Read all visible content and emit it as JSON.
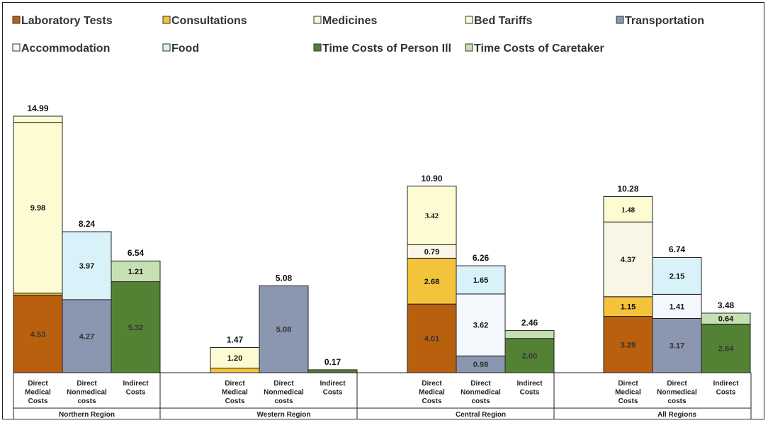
{
  "chart_data": {
    "type": "stacked-bar",
    "title": "",
    "xlabel": "",
    "ylabel": "",
    "ylim": [
      0,
      16
    ],
    "grid": false,
    "legend_position": "top",
    "series": [
      {
        "key": "lab",
        "name": "Laboratory Tests",
        "color": "#b8600d",
        "text_color": "#333333"
      },
      {
        "key": "consult",
        "name": "Consultations",
        "color": "#f3c33c",
        "text_color": "#111111"
      },
      {
        "key": "med",
        "name": "Medicines",
        "color": "#faf6e6",
        "text_color": "#111111"
      },
      {
        "key": "bed",
        "name": "Bed Tariffs",
        "color": "#fdfbd2",
        "text_color": "#111111"
      },
      {
        "key": "transport",
        "name": "Transportation",
        "color": "#8b97b0",
        "text_color": "#333333"
      },
      {
        "key": "accom",
        "name": "Accommodation",
        "color": "#f4f7fc",
        "text_color": "#111111"
      },
      {
        "key": "food",
        "name": "Food",
        "color": "#d9f2fa",
        "text_color": "#111111"
      },
      {
        "key": "tcp",
        "name": "Time Costs of Person Ill",
        "color": "#548235",
        "text_color": "#333333"
      },
      {
        "key": "tcc",
        "name": "Time Costs of Caretaker",
        "color": "#c6e0b4",
        "text_color": "#111111"
      }
    ],
    "groups": [
      {
        "region": "Northern Region",
        "bars": [
          {
            "label": [
              "Direct",
              "Medical",
              "Costs"
            ],
            "total": 14.99,
            "total_label": "14.99",
            "segments": [
              {
                "series": "lab",
                "value": 4.53,
                "label": "4.53"
              },
              {
                "series": "consult",
                "value": 0.12,
                "label": ""
              },
              {
                "series": "med",
                "value": 0.0,
                "label": ""
              },
              {
                "series": "bed",
                "value": 9.98,
                "label": "9.98"
              },
              {
                "series": "bed",
                "value": 0.36,
                "label": ""
              }
            ]
          },
          {
            "label": [
              "Direct",
              "Nonmedical",
              "costs"
            ],
            "total": 8.24,
            "total_label": "8.24",
            "segments": [
              {
                "series": "transport",
                "value": 4.27,
                "label": "4.27"
              },
              {
                "series": "food",
                "value": 3.97,
                "label": "3.97"
              }
            ]
          },
          {
            "label": [
              "Indirect",
              "Costs"
            ],
            "total": 6.54,
            "total_label": "6.54",
            "segments": [
              {
                "series": "tcp",
                "value": 5.32,
                "label": "5.32"
              },
              {
                "series": "tcc",
                "value": 1.21,
                "label": "1.21"
              }
            ]
          }
        ]
      },
      {
        "region": "Western Region",
        "bars": [
          {
            "label": [
              "Direct",
              "Medical",
              "Costs"
            ],
            "total": 1.47,
            "total_label": "1.47",
            "segments": [
              {
                "series": "consult",
                "value": 0.27,
                "label": ""
              },
              {
                "series": "bed",
                "value": 1.2,
                "label": "1.20"
              }
            ]
          },
          {
            "label": [
              "Direct",
              "Nonmedical",
              "costs"
            ],
            "total": 5.08,
            "total_label": "5.08",
            "segments": [
              {
                "series": "transport",
                "value": 5.08,
                "label": "5.08"
              }
            ]
          },
          {
            "label": [
              "Indirect",
              "Costs"
            ],
            "total": 0.17,
            "total_label": "0.17",
            "segments": [
              {
                "series": "tcp",
                "value": 0.17,
                "label": ""
              }
            ]
          }
        ]
      },
      {
        "region": "Central Region",
        "bars": [
          {
            "label": [
              "Direct",
              "Medical",
              "Costs"
            ],
            "total": 10.9,
            "total_label": "10.90",
            "segments": [
              {
                "series": "lab",
                "value": 4.01,
                "label": "4.01"
              },
              {
                "series": "consult",
                "value": 2.68,
                "label": "2.68"
              },
              {
                "series": "med",
                "value": 0.79,
                "label": "0.79"
              },
              {
                "series": "bed",
                "value": 3.42,
                "label": "3.42",
                "serif": true
              }
            ]
          },
          {
            "label": [
              "Direct",
              "Nonmedical",
              "costs"
            ],
            "total": 6.26,
            "total_label": "6.26",
            "segments": [
              {
                "series": "transport",
                "value": 0.98,
                "label": "0.98"
              },
              {
                "series": "accom",
                "value": 3.62,
                "label": "3.62"
              },
              {
                "series": "food",
                "value": 1.65,
                "label": "1.65"
              }
            ]
          },
          {
            "label": [
              "Indirect",
              "Costs"
            ],
            "total": 2.46,
            "total_label": "2.46",
            "segments": [
              {
                "series": "tcp",
                "value": 2.0,
                "label": "2.00"
              },
              {
                "series": "tcc",
                "value": 0.46,
                "label": ""
              }
            ]
          }
        ]
      },
      {
        "region": "All Regions",
        "bars": [
          {
            "label": [
              "Direct",
              "Medical",
              "Costs"
            ],
            "total": 10.28,
            "total_label": "10.28",
            "segments": [
              {
                "series": "lab",
                "value": 3.29,
                "label": "3.29"
              },
              {
                "series": "consult",
                "value": 1.15,
                "label": "1.15"
              },
              {
                "series": "med",
                "value": 4.37,
                "label": "4.37"
              },
              {
                "series": "bed",
                "value": 1.48,
                "label": "1.48",
                "serif": true
              }
            ]
          },
          {
            "label": [
              "Direct",
              "Nonmedical",
              "costs"
            ],
            "total": 6.74,
            "total_label": "6.74",
            "segments": [
              {
                "series": "transport",
                "value": 3.17,
                "label": "3.17"
              },
              {
                "series": "accom",
                "value": 1.41,
                "label": "1.41"
              },
              {
                "series": "food",
                "value": 2.15,
                "label": "2.15"
              }
            ]
          },
          {
            "label": [
              "Indirect",
              "Costs"
            ],
            "total": 3.48,
            "total_label": "3.48",
            "segments": [
              {
                "series": "tcp",
                "value": 2.84,
                "label": "2.84"
              },
              {
                "series": "tcc",
                "value": 0.64,
                "label": "0.64"
              }
            ]
          }
        ]
      }
    ]
  }
}
